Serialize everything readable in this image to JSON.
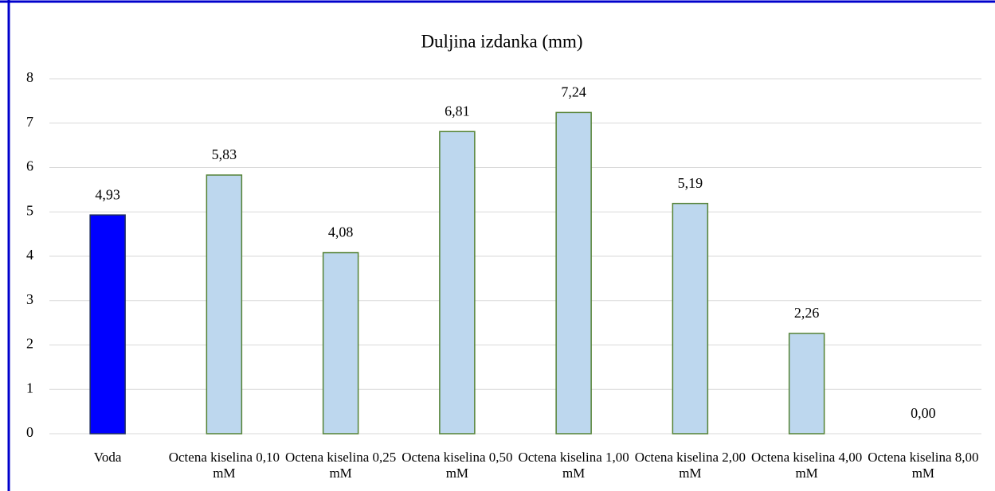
{
  "chart_data": {
    "type": "bar",
    "title": "Duljina izdanka (mm)",
    "categories": [
      "Voda",
      "Octena kiselina 0,10 mM",
      "Octena kiselina 0,25 mM",
      "Octena kiselina 0,50 mM",
      "Octena kiselina 1,00 mM",
      "Octena kiselina 2,00 mM",
      "Octena kiselina 4,00 mM",
      "Octena kiselina 8,00 mM"
    ],
    "values": [
      4.93,
      5.83,
      4.08,
      6.81,
      7.24,
      5.19,
      2.26,
      0
    ],
    "value_labels": [
      "4,93",
      "5,83",
      "4,08",
      "6,81",
      "7,24",
      "5,19",
      "2,26",
      "0,00"
    ],
    "colors": [
      "#0000ff",
      "#bdd7ee",
      "#bdd7ee",
      "#bdd7ee",
      "#bdd7ee",
      "#bdd7ee",
      "#bdd7ee",
      "#bdd7ee"
    ],
    "edge_color": "#548235",
    "ylim": [
      0,
      8
    ],
    "yticks": [
      0,
      1,
      2,
      3,
      4,
      5,
      6,
      7,
      8
    ],
    "grid": true
  }
}
